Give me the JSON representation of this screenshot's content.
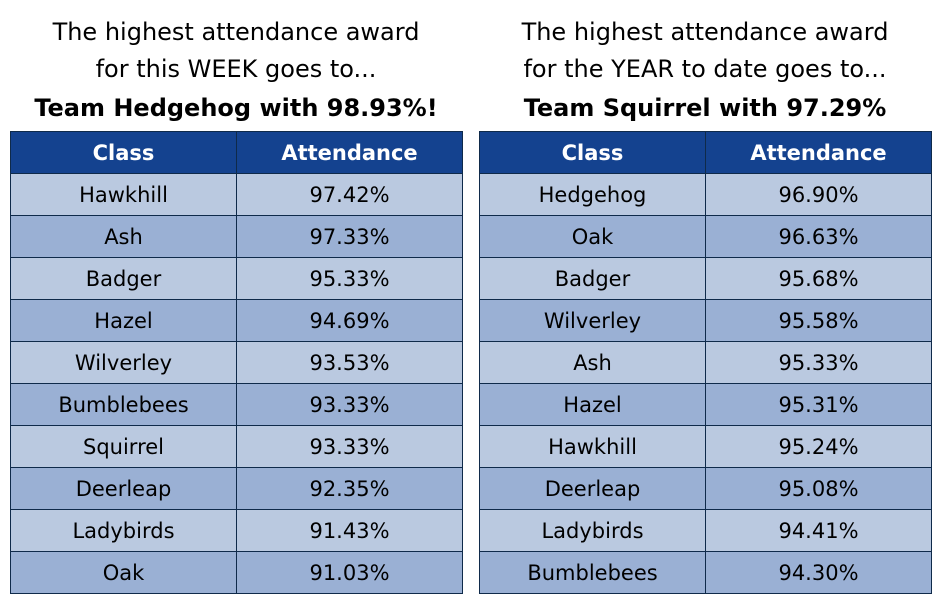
{
  "week": {
    "line1": "The highest attendance award",
    "line2": "for this WEEK goes to...",
    "winner": "Team Hedgehog with 98.93%!",
    "headers": {
      "class": "Class",
      "attendance": "Attendance"
    },
    "rows": [
      {
        "class": "Hawkhill",
        "attendance": "97.42%"
      },
      {
        "class": "Ash",
        "attendance": "97.33%"
      },
      {
        "class": "Badger",
        "attendance": "95.33%"
      },
      {
        "class": "Hazel",
        "attendance": "94.69%"
      },
      {
        "class": "Wilverley",
        "attendance": "93.53%"
      },
      {
        "class": "Bumblebees",
        "attendance": "93.33%"
      },
      {
        "class": "Squirrel",
        "attendance": "93.33%"
      },
      {
        "class": "Deerleap",
        "attendance": "92.35%"
      },
      {
        "class": "Ladybirds",
        "attendance": "91.43%"
      },
      {
        "class": "Oak",
        "attendance": "91.03%"
      }
    ]
  },
  "year": {
    "line1": "The highest attendance award",
    "line2": "for the YEAR to date goes to...",
    "winner": "Team Squirrel with 97.29%",
    "headers": {
      "class": "Class",
      "attendance": "Attendance"
    },
    "rows": [
      {
        "class": "Hedgehog",
        "attendance": "96.90%"
      },
      {
        "class": "Oak",
        "attendance": "96.63%"
      },
      {
        "class": "Badger",
        "attendance": "95.68%"
      },
      {
        "class": "Wilverley",
        "attendance": "95.58%"
      },
      {
        "class": "Ash",
        "attendance": "95.33%"
      },
      {
        "class": "Hazel",
        "attendance": "95.31%"
      },
      {
        "class": "Hawkhill",
        "attendance": "95.24%"
      },
      {
        "class": "Deerleap",
        "attendance": "95.08%"
      },
      {
        "class": "Ladybirds",
        "attendance": "94.41%"
      },
      {
        "class": "Bumblebees",
        "attendance": "94.30%"
      }
    ]
  },
  "colors": {
    "header_bg": "#14428f",
    "row_light": "#bac9e0",
    "row_dark": "#9ab0d4"
  }
}
